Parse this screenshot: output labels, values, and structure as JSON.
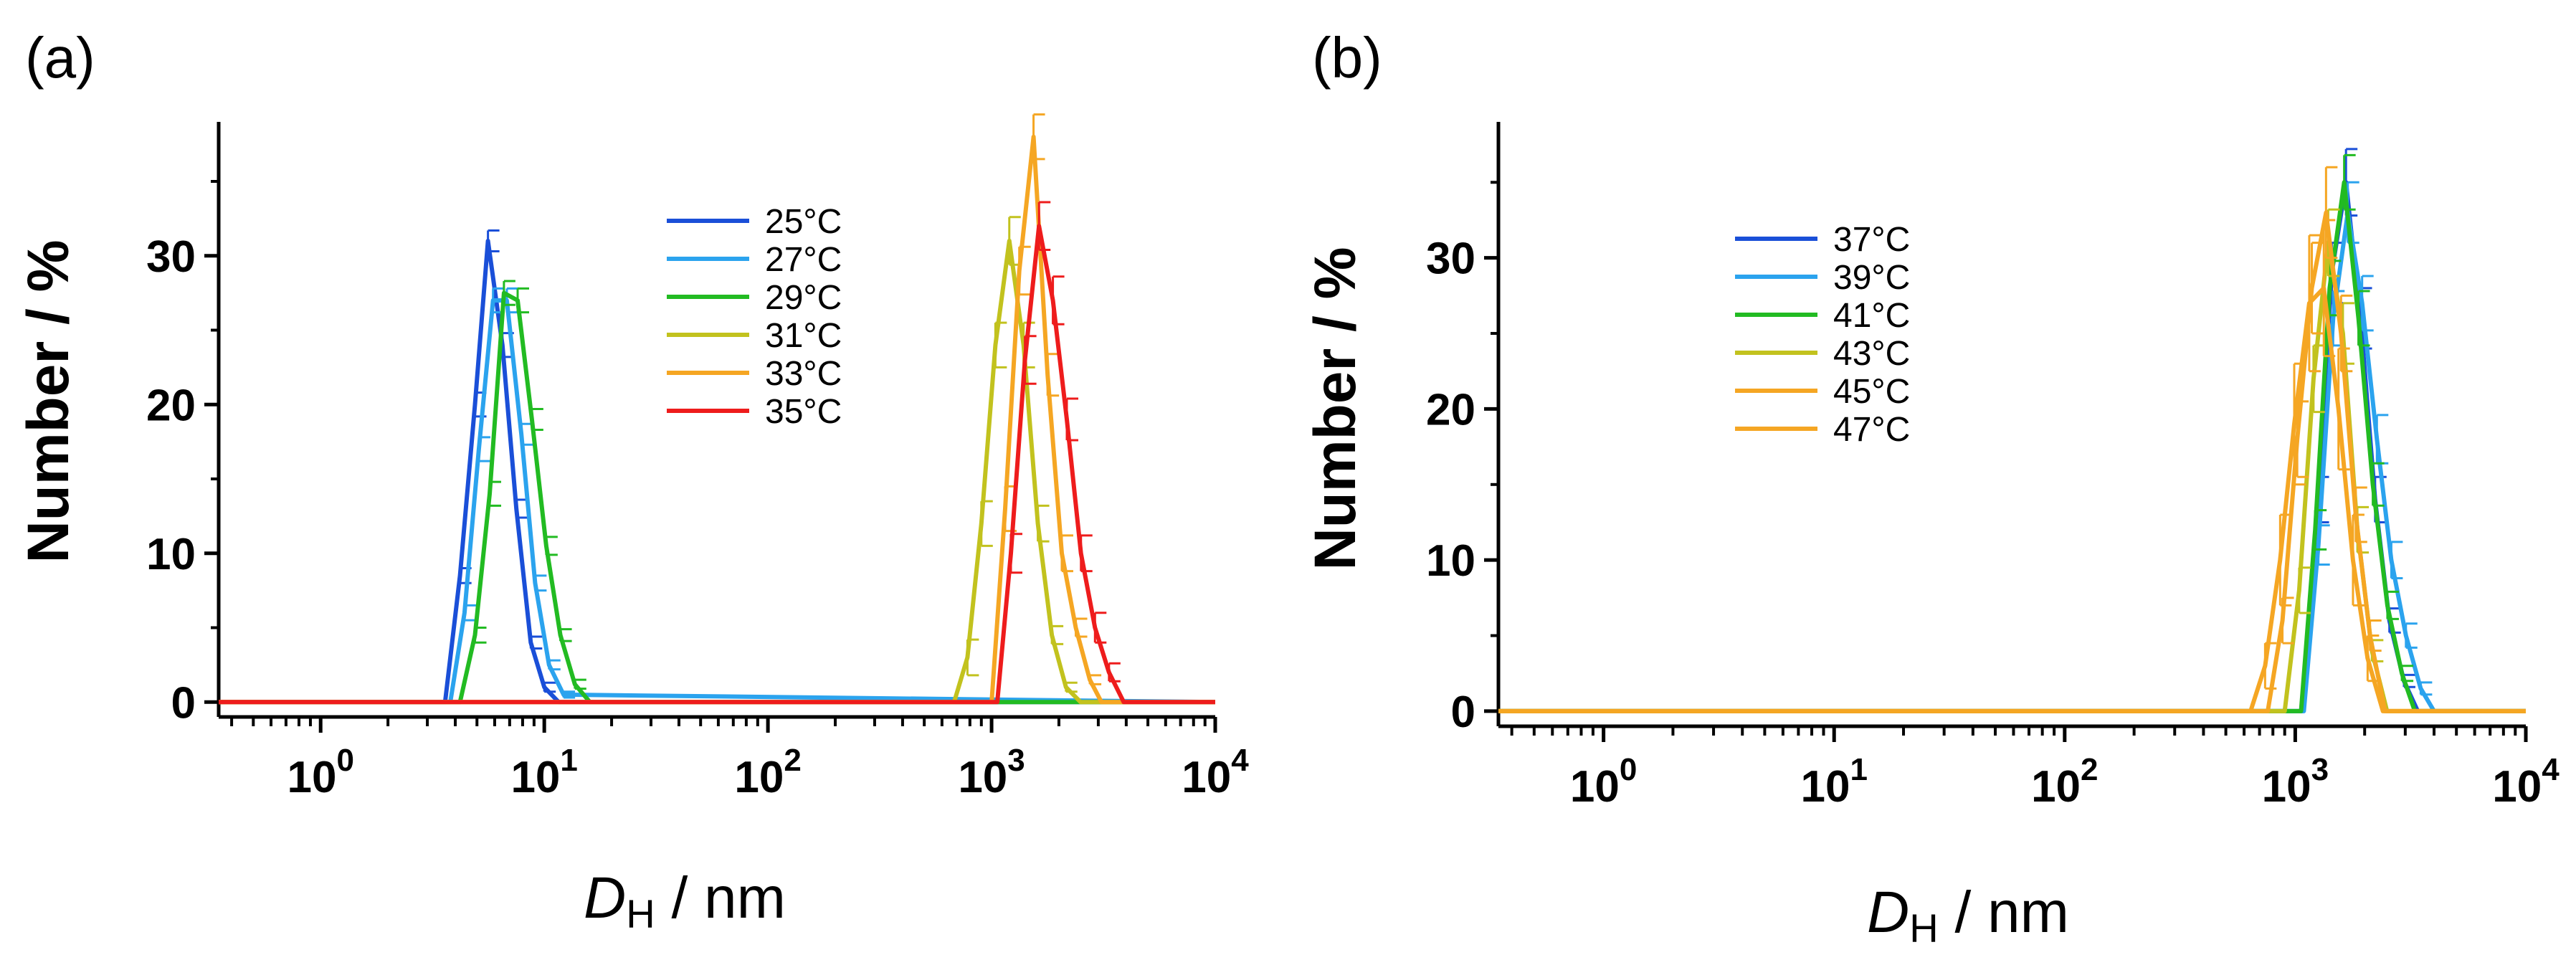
{
  "figure": {
    "panels": [
      "(a)",
      "(b)"
    ]
  },
  "chart_data": [
    {
      "type": "line",
      "panel_label": "(a)",
      "xscale": "log",
      "xlim": [
        0.35,
        10000
      ],
      "ylim": [
        -1,
        39
      ],
      "ylabel": "Number / %",
      "xlabel": {
        "symbol": "D",
        "subscript": "H",
        "unit": " / nm"
      },
      "yticks": [
        0,
        10,
        20,
        30
      ],
      "xticks": [
        {
          "base": "10",
          "exp": "0",
          "value": 1
        },
        {
          "base": "10",
          "exp": "1",
          "value": 10
        },
        {
          "base": "10",
          "exp": "2",
          "value": 100
        },
        {
          "base": "10",
          "exp": "3",
          "value": 1000
        },
        {
          "base": "10",
          "exp": "4",
          "value": 10000
        }
      ],
      "legend_position": "top-center",
      "series": [
        {
          "name": "25°C",
          "color": "#1a4fd8",
          "x": [
            0.35,
            3.6,
            4.2,
            4.9,
            5.6,
            6.5,
            7.5,
            8.7,
            10,
            11.6,
            10000
          ],
          "values": [
            0,
            0,
            8.5,
            20,
            31,
            24,
            13,
            4,
            1,
            0,
            0
          ],
          "err": [
            0,
            0,
            0.5,
            0.8,
            0.7,
            0.8,
            0.6,
            0.4,
            0.3,
            0,
            0
          ]
        },
        {
          "name": "27°C",
          "color": "#2ba3ee",
          "x": [
            0.35,
            3.8,
            4.4,
            5.1,
            5.9,
            6.8,
            7.9,
            9.1,
            10.5,
            12.2,
            10000
          ],
          "values": [
            0,
            0,
            6,
            17,
            27,
            27,
            18,
            8,
            2.5,
            0.5,
            0
          ],
          "err": [
            0,
            0,
            0.5,
            0.8,
            0.8,
            0.8,
            0.7,
            0.5,
            0.3,
            0.2,
            0
          ]
        },
        {
          "name": "29°C",
          "color": "#22bb22",
          "x": [
            0.35,
            4.2,
            4.9,
            5.7,
            6.6,
            7.6,
            8.8,
            10.2,
            11.8,
            13.7,
            16,
            10000
          ],
          "values": [
            0,
            0,
            4.5,
            14,
            27.5,
            27,
            19,
            10.5,
            4.5,
            1.2,
            0,
            0
          ],
          "err": [
            0,
            0,
            0.5,
            0.8,
            0.8,
            0.8,
            0.7,
            0.6,
            0.4,
            0.3,
            0,
            0
          ]
        },
        {
          "name": "31°C",
          "color": "#c2c21e",
          "x": [
            0.35,
            680,
            780,
            900,
            1040,
            1200,
            1390,
            1610,
            1860,
            2150,
            2500,
            10000
          ],
          "values": [
            0,
            0,
            3,
            12,
            24,
            31,
            24,
            12,
            4.5,
            1,
            0,
            0
          ],
          "err": [
            0,
            0,
            1.2,
            1.5,
            1.5,
            1.6,
            1.5,
            1.2,
            0.6,
            0.3,
            0,
            0
          ]
        },
        {
          "name": "33°C",
          "color": "#f5a623",
          "x": [
            0.35,
            1000,
            1150,
            1330,
            1540,
            1780,
            2060,
            2380,
            2750,
            3100,
            10000
          ],
          "values": [
            0,
            0,
            13,
            29,
            38,
            22,
            10,
            5,
            1.5,
            0,
            0
          ],
          "err": [
            0,
            0,
            1.5,
            1.6,
            1.5,
            1.4,
            1.2,
            0.6,
            0.3,
            0,
            0
          ]
        },
        {
          "name": "35°C",
          "color": "#ee1c1c",
          "x": [
            0.35,
            1060,
            1220,
            1410,
            1630,
            1880,
            2170,
            2510,
            2900,
            3350,
            3900,
            10000
          ],
          "values": [
            0,
            0,
            10,
            23,
            32,
            27,
            19,
            10,
            5,
            2,
            0,
            0
          ],
          "err": [
            0,
            0,
            1.3,
            1.6,
            1.6,
            1.6,
            1.4,
            1.2,
            1,
            0.6,
            0,
            0
          ]
        }
      ]
    },
    {
      "type": "line",
      "panel_label": "(b)",
      "xscale": "log",
      "xlim": [
        0.35,
        10000
      ],
      "ylim": [
        -1,
        39
      ],
      "ylabel": "Number / %",
      "xlabel": {
        "symbol": "D",
        "subscript": "H",
        "unit": " / nm"
      },
      "yticks": [
        0,
        10,
        20,
        30
      ],
      "xticks": [
        {
          "base": "10",
          "exp": "0",
          "value": 1
        },
        {
          "base": "10",
          "exp": "1",
          "value": 10
        },
        {
          "base": "10",
          "exp": "2",
          "value": 100
        },
        {
          "base": "10",
          "exp": "3",
          "value": 1000
        },
        {
          "base": "10",
          "exp": "4",
          "value": 10000
        }
      ],
      "legend_position": "top-left",
      "series": [
        {
          "name": "37°C",
          "color": "#1a4fd8",
          "x": [
            0.35,
            1080,
            1250,
            1440,
            1660,
            1920,
            2220,
            2560,
            2960,
            3400,
            10000
          ],
          "values": [
            0,
            0,
            14,
            29,
            35,
            26,
            14,
            6,
            2,
            0,
            0
          ],
          "err": [
            0,
            0,
            1.5,
            2,
            2.2,
            2,
            1.5,
            0.8,
            0.4,
            0,
            0
          ]
        },
        {
          "name": "39°C",
          "color": "#2ba3ee",
          "x": [
            0.35,
            1090,
            1260,
            1460,
            1690,
            1950,
            2260,
            2610,
            3020,
            3500,
            4000,
            10000
          ],
          "values": [
            0,
            0,
            11,
            26,
            33,
            27,
            18,
            10,
            5,
            1.5,
            0,
            0
          ],
          "err": [
            0,
            0,
            1.3,
            1.8,
            2,
            1.8,
            1.6,
            1.2,
            0.8,
            0.4,
            0,
            0
          ]
        },
        {
          "name": "41°C",
          "color": "#22bb22",
          "x": [
            0.35,
            1060,
            1220,
            1410,
            1630,
            1880,
            2170,
            2510,
            2900,
            3300,
            10000
          ],
          "values": [
            0,
            0,
            12,
            28,
            35,
            26,
            15,
            7,
            2.5,
            0,
            0
          ],
          "err": [
            0,
            0,
            1.3,
            1.8,
            1.8,
            1.8,
            1.4,
            0.9,
            0.5,
            0,
            0
          ]
        },
        {
          "name": "43°C",
          "color": "#c2c21e",
          "x": [
            0.35,
            900,
            1040,
            1200,
            1390,
            1610,
            1860,
            2150,
            2500,
            10000
          ],
          "values": [
            0,
            0,
            8,
            22,
            31,
            25,
            12,
            4,
            0,
            0
          ],
          "err": [
            0,
            0,
            1.5,
            2.2,
            2.2,
            2,
            1.5,
            0.7,
            0,
            0
          ]
        },
        {
          "name": "45°C",
          "color": "#f5a623",
          "x": [
            0.35,
            640,
            740,
            860,
            990,
            1150,
            1330,
            1540,
            1780,
            2060,
            2400,
            10000
          ],
          "values": [
            0,
            0,
            3,
            10,
            19,
            27,
            28,
            20,
            10,
            3.5,
            0,
            0
          ],
          "err": [
            0,
            0,
            1.5,
            3,
            4,
            4.5,
            4.5,
            4,
            3,
            1.5,
            0,
            0
          ]
        },
        {
          "name": "47°C",
          "color": "#f5a623",
          "x": [
            0.35,
            760,
            880,
            1020,
            1180,
            1360,
            1580,
            1830,
            2110,
            2450,
            10000
          ],
          "values": [
            0,
            0,
            6,
            18,
            28,
            33,
            25,
            13,
            5,
            0,
            0
          ],
          "err": [
            0,
            0,
            1.5,
            2.5,
            3,
            3,
            2.5,
            1.8,
            1,
            0,
            0
          ]
        }
      ]
    }
  ]
}
